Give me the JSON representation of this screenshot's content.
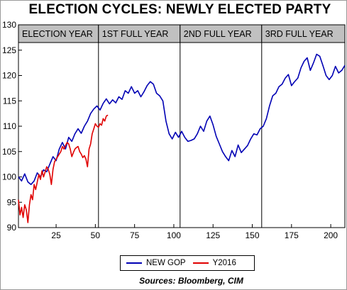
{
  "chart_data": {
    "type": "line",
    "title": "ELECTION CYCLES: NEWLY ELECTED PARTY",
    "source": "Sources: Bloomberg, CIM",
    "xlim": [
      1,
      209
    ],
    "ylim": [
      90,
      130
    ],
    "x_ticks": [
      25,
      50,
      75,
      100,
      125,
      150,
      175,
      200
    ],
    "y_ticks": [
      90,
      95,
      100,
      105,
      110,
      115,
      120,
      125,
      130
    ],
    "grid": false,
    "legend_position": "bottom",
    "periods": [
      {
        "label": "ELECTION YEAR",
        "start": 1,
        "end": 52
      },
      {
        "label": "1ST FULL YEAR",
        "start": 52,
        "end": 104
      },
      {
        "label": "2ND FULL YEAR",
        "start": 104,
        "end": 156
      },
      {
        "label": "3RD FULL YEAR",
        "start": 156,
        "end": 209
      }
    ],
    "series": [
      {
        "name": "NEW GOP",
        "color": "#0000b4",
        "points": [
          [
            1,
            100.0
          ],
          [
            3,
            99.2
          ],
          [
            5,
            100.6
          ],
          [
            7,
            99.0
          ],
          [
            9,
            98.5
          ],
          [
            11,
            99.2
          ],
          [
            13,
            100.8
          ],
          [
            15,
            100.0
          ],
          [
            17,
            101.4
          ],
          [
            19,
            101.0
          ],
          [
            21,
            102.5
          ],
          [
            23,
            104.0
          ],
          [
            25,
            103.2
          ],
          [
            27,
            105.5
          ],
          [
            29,
            106.8
          ],
          [
            31,
            105.5
          ],
          [
            33,
            107.8
          ],
          [
            35,
            107.0
          ],
          [
            37,
            108.5
          ],
          [
            39,
            109.5
          ],
          [
            41,
            108.6
          ],
          [
            43,
            110.0
          ],
          [
            45,
            111.0
          ],
          [
            47,
            112.5
          ],
          [
            49,
            113.4
          ],
          [
            51,
            114.0
          ],
          [
            53,
            113.2
          ],
          [
            55,
            114.5
          ],
          [
            57,
            115.4
          ],
          [
            59,
            114.4
          ],
          [
            61,
            115.2
          ],
          [
            63,
            114.6
          ],
          [
            65,
            115.8
          ],
          [
            67,
            115.3
          ],
          [
            69,
            117.0
          ],
          [
            71,
            116.5
          ],
          [
            73,
            117.8
          ],
          [
            75,
            116.5
          ],
          [
            77,
            117.0
          ],
          [
            79,
            115.8
          ],
          [
            81,
            116.8
          ],
          [
            83,
            118.0
          ],
          [
            85,
            118.8
          ],
          [
            87,
            118.3
          ],
          [
            89,
            116.5
          ],
          [
            91,
            116.0
          ],
          [
            93,
            115.0
          ],
          [
            95,
            111.0
          ],
          [
            97,
            108.5
          ],
          [
            99,
            107.5
          ],
          [
            101,
            108.8
          ],
          [
            103,
            107.8
          ],
          [
            105,
            109.0
          ],
          [
            107,
            107.8
          ],
          [
            109,
            107.0
          ],
          [
            111,
            107.2
          ],
          [
            113,
            107.5
          ],
          [
            115,
            108.5
          ],
          [
            117,
            110.0
          ],
          [
            119,
            109.0
          ],
          [
            121,
            111.0
          ],
          [
            123,
            112.0
          ],
          [
            125,
            110.3
          ],
          [
            127,
            108.0
          ],
          [
            129,
            106.5
          ],
          [
            131,
            105.0
          ],
          [
            133,
            104.0
          ],
          [
            135,
            103.2
          ],
          [
            137,
            105.2
          ],
          [
            139,
            104.0
          ],
          [
            141,
            106.3
          ],
          [
            143,
            104.8
          ],
          [
            145,
            105.5
          ],
          [
            147,
            106.2
          ],
          [
            149,
            107.5
          ],
          [
            151,
            108.5
          ],
          [
            153,
            108.3
          ],
          [
            155,
            109.5
          ],
          [
            157,
            110.0
          ],
          [
            159,
            111.5
          ],
          [
            161,
            114.0
          ],
          [
            163,
            116.0
          ],
          [
            165,
            116.5
          ],
          [
            167,
            117.8
          ],
          [
            169,
            118.3
          ],
          [
            171,
            119.5
          ],
          [
            173,
            120.2
          ],
          [
            175,
            118.0
          ],
          [
            177,
            118.8
          ],
          [
            179,
            119.5
          ],
          [
            181,
            121.5
          ],
          [
            183,
            122.8
          ],
          [
            185,
            123.5
          ],
          [
            187,
            121.0
          ],
          [
            189,
            122.5
          ],
          [
            191,
            124.2
          ],
          [
            193,
            123.8
          ],
          [
            195,
            122.0
          ],
          [
            197,
            120.0
          ],
          [
            199,
            119.2
          ],
          [
            201,
            120.0
          ],
          [
            203,
            121.8
          ],
          [
            205,
            120.5
          ],
          [
            207,
            121.0
          ],
          [
            209,
            122.0
          ]
        ]
      },
      {
        "name": "Y2016",
        "color": "#e00000",
        "points": [
          [
            1,
            95.5
          ],
          [
            2,
            92.5
          ],
          [
            3,
            94.0
          ],
          [
            4,
            92.0
          ],
          [
            5,
            94.5
          ],
          [
            6,
            93.5
          ],
          [
            7,
            91.0
          ],
          [
            8,
            94.5
          ],
          [
            9,
            96.5
          ],
          [
            10,
            95.5
          ],
          [
            11,
            98.5
          ],
          [
            12,
            97.5
          ],
          [
            13,
            99.0
          ],
          [
            14,
            100.5
          ],
          [
            15,
            99.5
          ],
          [
            16,
            101.2
          ],
          [
            17,
            100.0
          ],
          [
            18,
            101.0
          ],
          [
            19,
            102.0
          ],
          [
            20,
            101.5
          ],
          [
            21,
            100.5
          ],
          [
            22,
            98.5
          ],
          [
            23,
            101.5
          ],
          [
            24,
            103.0
          ],
          [
            25,
            103.5
          ],
          [
            26,
            104.0
          ],
          [
            27,
            104.5
          ],
          [
            28,
            105.0
          ],
          [
            29,
            106.0
          ],
          [
            30,
            105.5
          ],
          [
            31,
            106.2
          ],
          [
            32,
            106.8
          ],
          [
            33,
            106.5
          ],
          [
            34,
            105.5
          ],
          [
            35,
            104.0
          ],
          [
            36,
            104.8
          ],
          [
            37,
            105.5
          ],
          [
            38,
            105.8
          ],
          [
            39,
            106.0
          ],
          [
            40,
            105.0
          ],
          [
            41,
            104.5
          ],
          [
            42,
            103.8
          ],
          [
            43,
            104.2
          ],
          [
            44,
            103.5
          ],
          [
            45,
            102.0
          ],
          [
            46,
            105.5
          ],
          [
            47,
            106.5
          ],
          [
            48,
            108.5
          ],
          [
            49,
            109.5
          ],
          [
            50,
            110.5
          ],
          [
            51,
            110.0
          ],
          [
            52,
            109.8
          ],
          [
            53,
            110.5
          ],
          [
            54,
            110.2
          ],
          [
            55,
            111.5
          ],
          [
            56,
            111.0
          ],
          [
            57,
            112.0
          ],
          [
            58,
            112.2
          ]
        ]
      }
    ]
  }
}
